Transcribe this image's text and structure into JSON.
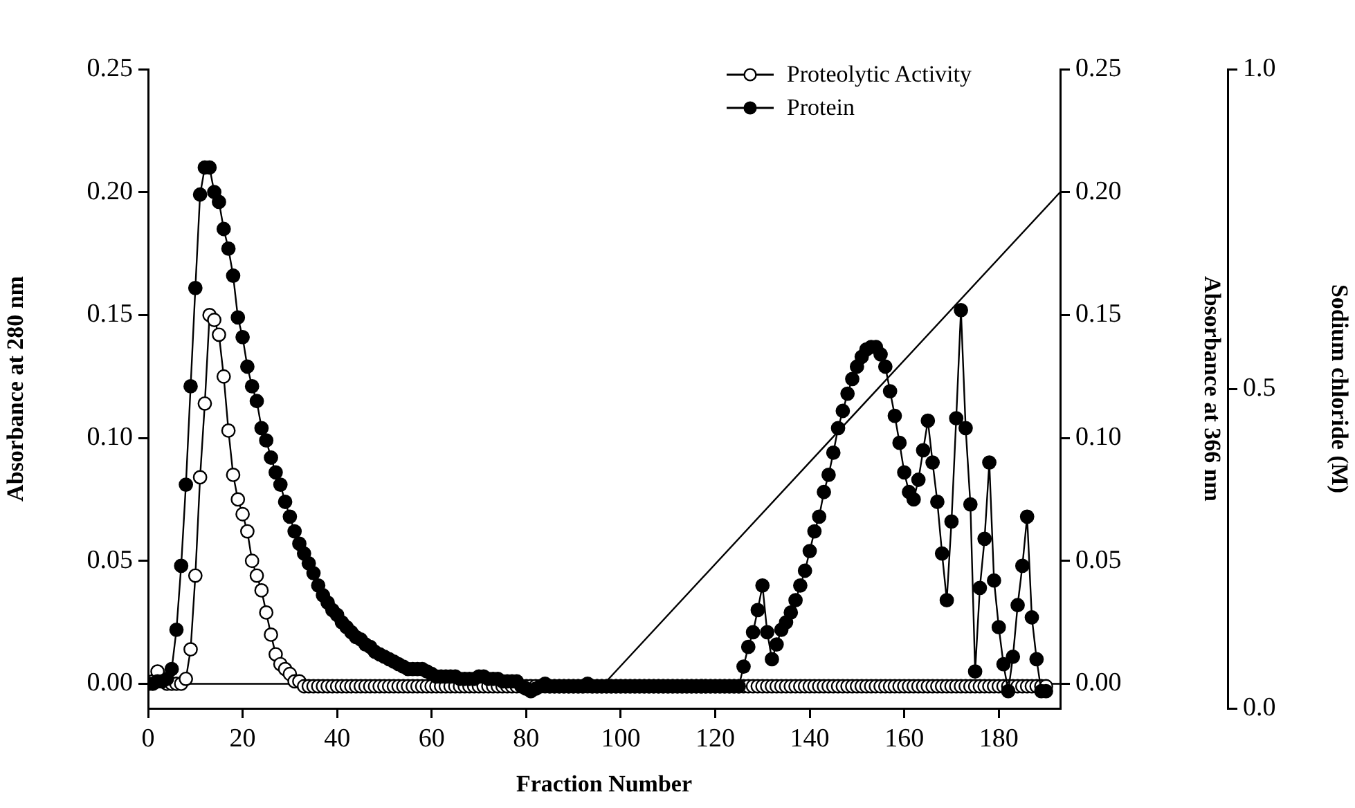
{
  "chart_data": {
    "type": "line",
    "xlabel": "Fraction Number",
    "ylabel": "Absorbance at 280 nm",
    "y2label": "Absorbance at 366 nm",
    "y3label": "Sodium chloride (M)",
    "x": [
      0,
      1,
      2,
      3,
      4,
      5,
      6,
      7,
      8,
      9,
      10,
      11,
      12,
      13,
      14,
      15,
      16,
      17,
      18,
      19,
      20,
      21,
      22,
      23,
      24,
      25,
      26,
      27,
      28,
      29,
      30,
      31,
      32,
      33,
      34,
      35,
      36,
      37,
      38,
      39,
      40,
      41,
      42,
      43,
      44,
      45,
      46,
      47,
      48,
      49,
      50,
      51,
      52,
      53,
      54,
      55,
      56,
      57,
      58,
      59,
      60,
      61,
      62,
      63,
      64,
      65,
      66,
      67,
      68,
      69,
      70,
      71,
      72,
      73,
      74,
      75,
      76,
      77,
      78,
      79,
      80,
      81,
      82,
      83,
      84,
      85,
      86,
      87,
      88,
      89,
      90,
      91,
      92,
      93,
      94,
      95,
      96,
      97,
      98,
      99,
      100,
      101,
      102,
      103,
      104,
      105,
      106,
      107,
      108,
      109,
      110,
      111,
      112,
      113,
      114,
      115,
      116,
      117,
      118,
      119,
      120,
      121,
      122,
      123,
      124,
      125,
      126,
      127,
      128,
      129,
      130,
      131,
      132,
      133,
      134,
      135,
      136,
      137,
      138,
      139,
      140,
      141,
      142,
      143,
      144,
      145,
      146,
      147,
      148,
      149,
      150,
      151,
      152,
      153,
      154,
      155,
      156,
      157,
      158,
      159,
      160,
      161,
      162,
      163,
      164,
      165,
      166,
      167,
      168,
      169,
      170,
      171,
      172,
      173,
      174,
      175,
      176,
      177,
      178,
      179,
      180,
      181,
      182,
      183,
      184,
      185,
      186,
      187,
      188,
      189,
      190
    ],
    "series": [
      {
        "name": "Proteolytic Activity",
        "color": "#000000",
        "marker": "circle",
        "values": [
          0,
          0.001,
          0.005,
          0.001,
          0,
          0,
          0,
          0,
          0.002,
          0.014,
          0.044,
          0.084,
          0.114,
          0.15,
          0.148,
          0.142,
          0.125,
          0.103,
          0.085,
          0.075,
          0.069,
          0.062,
          0.05,
          0.044,
          0.038,
          0.029,
          0.02,
          0.012,
          0.008,
          0.006,
          0.004,
          0.001,
          0.001,
          -0.001,
          -0.001,
          -0.001,
          -0.001,
          -0.001,
          -0.001,
          -0.001,
          -0.001,
          -0.001,
          -0.001,
          -0.001,
          -0.001,
          -0.001,
          -0.001,
          -0.001,
          -0.001,
          -0.001,
          -0.001,
          -0.001,
          -0.001,
          -0.001,
          -0.001,
          -0.001,
          -0.001,
          -0.001,
          -0.001,
          -0.001,
          -0.001,
          -0.001,
          -0.001,
          -0.001,
          -0.001,
          -0.001,
          -0.001,
          -0.001,
          -0.001,
          -0.001,
          -0.001,
          -0.001,
          -0.001,
          -0.001,
          -0.001,
          -0.001,
          -0.001,
          -0.001,
          -0.001,
          -0.001,
          -0.001,
          -0.001,
          -0.001,
          -0.001,
          -0.001,
          -0.001,
          -0.001,
          -0.001,
          -0.001,
          -0.001,
          -0.001,
          -0.001,
          -0.001,
          -0.001,
          -0.001,
          -0.001,
          -0.001,
          -0.001,
          -0.001,
          -0.001,
          -0.001,
          -0.001,
          -0.001,
          -0.001,
          -0.001,
          -0.001,
          -0.001,
          -0.001,
          -0.001,
          -0.001,
          -0.001,
          -0.001,
          -0.001,
          -0.001,
          -0.001,
          -0.001,
          -0.001,
          -0.001,
          -0.001,
          -0.001,
          -0.001,
          -0.001,
          -0.001,
          -0.001,
          -0.001,
          -0.001,
          -0.001,
          -0.001,
          -0.001,
          -0.001,
          -0.001,
          -0.001,
          -0.001,
          -0.001,
          -0.001,
          -0.001,
          -0.001,
          -0.001,
          -0.001,
          -0.001,
          -0.001,
          -0.001,
          -0.001,
          -0.001,
          -0.001,
          -0.001,
          -0.001,
          -0.001,
          -0.001,
          -0.001,
          -0.001,
          -0.001,
          -0.001,
          -0.001,
          -0.001,
          -0.001,
          -0.001,
          -0.001,
          -0.001,
          -0.001,
          -0.001,
          -0.001,
          -0.001,
          -0.001,
          -0.001,
          -0.001,
          -0.001,
          -0.001,
          -0.001,
          -0.001,
          -0.001,
          -0.001,
          -0.001,
          -0.001,
          -0.001,
          -0.001,
          -0.001,
          -0.001,
          -0.001,
          -0.001,
          -0.001,
          -0.001,
          -0.001,
          -0.001,
          -0.001,
          -0.001,
          -0.001,
          -0.001,
          -0.001,
          -0.001,
          -0.001
        ]
      },
      {
        "name": "Protein",
        "color": "#000000",
        "marker": "circle",
        "values": [
          0,
          0,
          0.001,
          0.001,
          0.002,
          0.006,
          0.022,
          0.048,
          0.081,
          0.121,
          0.161,
          0.199,
          0.21,
          0.21,
          0.2,
          0.196,
          0.185,
          0.177,
          0.166,
          0.149,
          0.141,
          0.129,
          0.121,
          0.115,
          0.104,
          0.099,
          0.092,
          0.086,
          0.081,
          0.074,
          0.068,
          0.062,
          0.057,
          0.053,
          0.049,
          0.045,
          0.04,
          0.036,
          0.033,
          0.03,
          0.028,
          0.025,
          0.023,
          0.021,
          0.019,
          0.018,
          0.016,
          0.015,
          0.013,
          0.012,
          0.011,
          0.01,
          0.009,
          0.008,
          0.007,
          0.006,
          0.006,
          0.006,
          0.006,
          0.005,
          0.004,
          0.003,
          0.003,
          0.003,
          0.003,
          0.003,
          0.002,
          0.002,
          0.002,
          0.002,
          0.003,
          0.003,
          0.002,
          0.002,
          0.002,
          0.001,
          0.001,
          0.001,
          0.001,
          -0.001,
          -0.002,
          -0.003,
          -0.002,
          -0.001,
          0,
          -0.001,
          -0.001,
          -0.001,
          -0.001,
          -0.001,
          -0.001,
          -0.001,
          -0.001,
          0,
          -0.001,
          -0.001,
          -0.001,
          -0.001,
          -0.001,
          -0.001,
          -0.001,
          -0.001,
          -0.001,
          -0.001,
          -0.001,
          -0.001,
          -0.001,
          -0.001,
          -0.001,
          -0.001,
          -0.001,
          -0.001,
          -0.001,
          -0.001,
          -0.001,
          -0.001,
          -0.001,
          -0.001,
          -0.001,
          -0.001,
          -0.001,
          -0.001,
          -0.001,
          -0.001,
          -0.001,
          -0.001,
          0.007,
          0.015,
          0.021,
          0.03,
          0.04,
          0.021,
          0.01,
          0.016,
          0.022,
          0.025,
          0.029,
          0.034,
          0.04,
          0.046,
          0.054,
          0.062,
          0.068,
          0.078,
          0.085,
          0.094,
          0.104,
          0.111,
          0.118,
          0.124,
          0.129,
          0.133,
          0.136,
          0.137,
          0.137,
          0.134,
          0.129,
          0.119,
          0.109,
          0.098,
          0.086,
          0.078,
          0.075,
          0.083,
          0.095,
          0.107,
          0.09,
          0.074,
          0.053,
          0.034,
          0.066,
          0.108,
          0.152,
          0.104,
          0.073,
          0.005,
          0.039,
          0.059,
          0.09,
          0.042,
          0.023,
          0.008,
          -0.003,
          0.011,
          0.032,
          0.048,
          0.068,
          0.027,
          0.01,
          -0.003,
          -0.003
        ]
      },
      {
        "color": "#000000",
        "marker": "none",
        "x": [
          96.5,
          193
        ],
        "values": [
          0,
          0.2
        ]
      }
    ],
    "xlim": [
      0,
      193
    ],
    "xticks": [
      0,
      20,
      40,
      60,
      80,
      100,
      120,
      140,
      160,
      180
    ],
    "ylim": [
      -0.01,
      0.25
    ],
    "yticks": [
      {
        "value": 0,
        "label": "0.00"
      },
      {
        "value": 0.05,
        "label": "0.05"
      },
      {
        "value": 0.1,
        "label": "0.10"
      },
      {
        "value": 0.15,
        "label": "0.15"
      },
      {
        "value": 0.2,
        "label": "0.20"
      },
      {
        "value": 0.25,
        "label": "0.25"
      }
    ],
    "y2lim": [
      -0.01,
      0.25
    ],
    "y2ticks": [
      {
        "value": 0,
        "label": "0.00"
      },
      {
        "value": 0.05,
        "label": "0.05"
      },
      {
        "value": 0.1,
        "label": "0.10"
      },
      {
        "value": 0.15,
        "label": "0.15"
      },
      {
        "value": 0.2,
        "label": "0.20"
      },
      {
        "value": 0.25,
        "label": "0.25"
      }
    ],
    "y3lim": [
      0,
      1
    ],
    "y3ticks": [
      {
        "value": 0,
        "label": "0.0"
      },
      0.5,
      {
        "value": 1,
        "label": "1.0"
      }
    ],
    "ref_lines": [
      {
        "axis": "y",
        "value": 0,
        "color": "#000000"
      }
    ],
    "legend": "top right",
    "grid": false,
    "line_style": "solid"
  }
}
